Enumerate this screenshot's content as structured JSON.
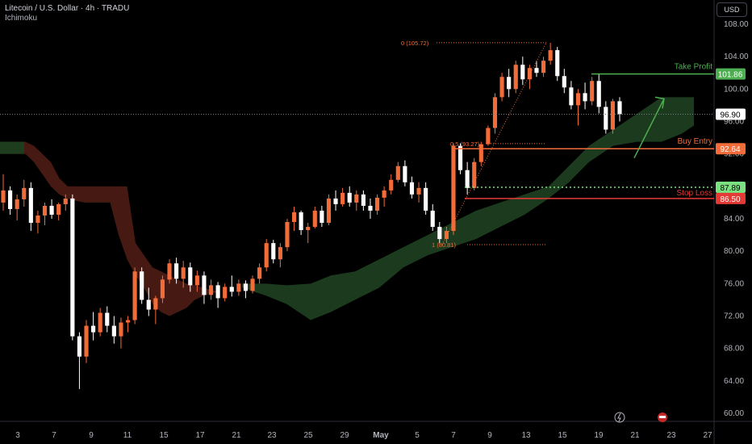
{
  "header": {
    "symbol_line": "Litecoin / U.S. Dollar · 4h · TRADU",
    "indicator": "Ichimoku"
  },
  "price_scale_label": "USD",
  "colors": {
    "background": "#000000",
    "bull": "#f26c3a",
    "bear": "#ffffff",
    "cloud_bull": "#1e3d1f",
    "cloud_bear": "#4a1a14",
    "take_profit": "#4caf50",
    "buy_entry": "#f26c3a",
    "stop_loss": "#e53935",
    "target_line": "#7be07f",
    "fib": "#f26c3a"
  },
  "chart_data": {
    "type": "candlestick",
    "title": "",
    "ylim": [
      58,
      110
    ],
    "y_ticks": [
      "108.00",
      "104.00",
      "100.00",
      "96.00",
      "92.00",
      "88.00",
      "84.00",
      "80.00",
      "76.00",
      "72.00",
      "68.00",
      "64.00",
      "60.00"
    ],
    "x_ticks": [
      "3",
      "7",
      "9",
      "11",
      "15",
      "17",
      "21",
      "23",
      "25",
      "29",
      "May",
      "5",
      "7",
      "9",
      "13",
      "15",
      "19",
      "21",
      "23",
      "27"
    ],
    "candles": [
      {
        "o": 86.0,
        "h": 89.5,
        "l": 85.0,
        "c": 87.5
      },
      {
        "o": 87.5,
        "h": 88.0,
        "l": 84.5,
        "c": 85.2
      },
      {
        "o": 85.2,
        "h": 87.0,
        "l": 83.8,
        "c": 86.4
      },
      {
        "o": 86.4,
        "h": 88.8,
        "l": 85.5,
        "c": 87.8
      },
      {
        "o": 87.8,
        "h": 88.5,
        "l": 82.5,
        "c": 83.5
      },
      {
        "o": 83.5,
        "h": 85.0,
        "l": 82.2,
        "c": 84.4
      },
      {
        "o": 84.4,
        "h": 86.0,
        "l": 83.2,
        "c": 85.6
      },
      {
        "o": 85.6,
        "h": 86.4,
        "l": 84.0,
        "c": 84.5
      },
      {
        "o": 84.5,
        "h": 86.0,
        "l": 83.8,
        "c": 85.8
      },
      {
        "o": 85.8,
        "h": 87.0,
        "l": 85.0,
        "c": 86.5
      },
      {
        "o": 86.5,
        "h": 87.0,
        "l": 69.0,
        "c": 69.5
      },
      {
        "o": 69.5,
        "h": 70.0,
        "l": 63.0,
        "c": 67.0
      },
      {
        "o": 67.0,
        "h": 71.5,
        "l": 66.2,
        "c": 70.8
      },
      {
        "o": 70.8,
        "h": 72.5,
        "l": 69.0,
        "c": 70.0
      },
      {
        "o": 70.0,
        "h": 73.0,
        "l": 69.5,
        "c": 72.4
      },
      {
        "o": 72.4,
        "h": 73.2,
        "l": 70.0,
        "c": 70.8
      },
      {
        "o": 70.8,
        "h": 72.0,
        "l": 68.6,
        "c": 69.5
      },
      {
        "o": 69.5,
        "h": 71.8,
        "l": 68.0,
        "c": 71.2
      },
      {
        "o": 71.2,
        "h": 72.0,
        "l": 70.0,
        "c": 71.5
      },
      {
        "o": 71.5,
        "h": 78.0,
        "l": 71.0,
        "c": 77.5
      },
      {
        "o": 77.5,
        "h": 78.0,
        "l": 73.5,
        "c": 74.0
      },
      {
        "o": 74.0,
        "h": 75.5,
        "l": 72.0,
        "c": 72.8
      },
      {
        "o": 72.8,
        "h": 74.5,
        "l": 71.0,
        "c": 74.2
      },
      {
        "o": 74.2,
        "h": 77.0,
        "l": 73.6,
        "c": 76.5
      },
      {
        "o": 76.5,
        "h": 79.0,
        "l": 76.0,
        "c": 78.5
      },
      {
        "o": 78.5,
        "h": 79.2,
        "l": 76.0,
        "c": 76.6
      },
      {
        "o": 76.6,
        "h": 78.8,
        "l": 75.5,
        "c": 78.0
      },
      {
        "o": 78.0,
        "h": 78.6,
        "l": 75.0,
        "c": 75.8
      },
      {
        "o": 75.8,
        "h": 77.6,
        "l": 75.0,
        "c": 77.0
      },
      {
        "o": 77.0,
        "h": 77.5,
        "l": 73.5,
        "c": 74.6
      },
      {
        "o": 74.6,
        "h": 76.5,
        "l": 74.0,
        "c": 75.8
      },
      {
        "o": 75.8,
        "h": 76.2,
        "l": 73.0,
        "c": 74.2
      },
      {
        "o": 74.2,
        "h": 76.0,
        "l": 73.8,
        "c": 75.6
      },
      {
        "o": 75.6,
        "h": 77.0,
        "l": 74.4,
        "c": 75.0
      },
      {
        "o": 75.0,
        "h": 76.5,
        "l": 74.5,
        "c": 76.0
      },
      {
        "o": 76.0,
        "h": 76.4,
        "l": 74.2,
        "c": 75.1
      },
      {
        "o": 75.1,
        "h": 77.0,
        "l": 74.8,
        "c": 76.6
      },
      {
        "o": 76.6,
        "h": 78.5,
        "l": 76.0,
        "c": 78.0
      },
      {
        "o": 78.0,
        "h": 81.5,
        "l": 77.5,
        "c": 81.0
      },
      {
        "o": 81.0,
        "h": 81.4,
        "l": 78.5,
        "c": 79.0
      },
      {
        "o": 79.0,
        "h": 81.0,
        "l": 78.0,
        "c": 80.5
      },
      {
        "o": 80.5,
        "h": 84.0,
        "l": 80.0,
        "c": 83.6
      },
      {
        "o": 83.6,
        "h": 85.5,
        "l": 82.5,
        "c": 84.8
      },
      {
        "o": 84.8,
        "h": 85.0,
        "l": 82.0,
        "c": 82.6
      },
      {
        "o": 82.6,
        "h": 83.5,
        "l": 81.0,
        "c": 83.0
      },
      {
        "o": 83.0,
        "h": 85.5,
        "l": 82.8,
        "c": 85.0
      },
      {
        "o": 85.0,
        "h": 85.6,
        "l": 83.0,
        "c": 83.5
      },
      {
        "o": 83.5,
        "h": 87.0,
        "l": 83.2,
        "c": 86.5
      },
      {
        "o": 86.5,
        "h": 87.5,
        "l": 85.0,
        "c": 85.8
      },
      {
        "o": 85.8,
        "h": 87.8,
        "l": 85.5,
        "c": 87.2
      },
      {
        "o": 87.2,
        "h": 88.0,
        "l": 85.5,
        "c": 86.0
      },
      {
        "o": 86.0,
        "h": 87.5,
        "l": 85.0,
        "c": 87.0
      },
      {
        "o": 87.0,
        "h": 87.5,
        "l": 85.0,
        "c": 85.6
      },
      {
        "o": 85.6,
        "h": 86.5,
        "l": 84.0,
        "c": 85.0
      },
      {
        "o": 85.0,
        "h": 87.0,
        "l": 84.5,
        "c": 86.6
      },
      {
        "o": 86.6,
        "h": 88.0,
        "l": 85.5,
        "c": 87.5
      },
      {
        "o": 87.5,
        "h": 89.5,
        "l": 87.0,
        "c": 88.8
      },
      {
        "o": 88.8,
        "h": 91.0,
        "l": 88.5,
        "c": 90.5
      },
      {
        "o": 90.5,
        "h": 91.2,
        "l": 88.0,
        "c": 88.5
      },
      {
        "o": 88.5,
        "h": 89.2,
        "l": 86.5,
        "c": 87.0
      },
      {
        "o": 87.0,
        "h": 88.5,
        "l": 86.0,
        "c": 87.8
      },
      {
        "o": 87.8,
        "h": 88.5,
        "l": 84.5,
        "c": 85.0
      },
      {
        "o": 85.0,
        "h": 85.8,
        "l": 82.5,
        "c": 83.0
      },
      {
        "o": 83.0,
        "h": 83.6,
        "l": 81.0,
        "c": 81.5
      },
      {
        "o": 81.5,
        "h": 83.0,
        "l": 81.0,
        "c": 82.5
      },
      {
        "o": 82.5,
        "h": 93.3,
        "l": 82.0,
        "c": 93.0
      },
      {
        "o": 93.0,
        "h": 93.3,
        "l": 89.5,
        "c": 90.0
      },
      {
        "o": 90.0,
        "h": 91.0,
        "l": 87.0,
        "c": 87.8
      },
      {
        "o": 87.8,
        "h": 91.5,
        "l": 87.5,
        "c": 91.0
      },
      {
        "o": 91.0,
        "h": 93.5,
        "l": 90.5,
        "c": 93.2
      },
      {
        "o": 93.2,
        "h": 95.5,
        "l": 93.0,
        "c": 95.2
      },
      {
        "o": 95.2,
        "h": 99.5,
        "l": 94.5,
        "c": 99.0
      },
      {
        "o": 99.0,
        "h": 102.0,
        "l": 98.5,
        "c": 101.5
      },
      {
        "o": 101.5,
        "h": 102.5,
        "l": 99.0,
        "c": 100.0
      },
      {
        "o": 100.0,
        "h": 103.5,
        "l": 99.5,
        "c": 103.0
      },
      {
        "o": 103.0,
        "h": 104.0,
        "l": 100.5,
        "c": 101.2
      },
      {
        "o": 101.2,
        "h": 103.0,
        "l": 100.0,
        "c": 102.6
      },
      {
        "o": 102.6,
        "h": 103.5,
        "l": 101.5,
        "c": 102.0
      },
      {
        "o": 102.0,
        "h": 104.0,
        "l": 101.5,
        "c": 103.5
      },
      {
        "o": 103.5,
        "h": 105.7,
        "l": 103.0,
        "c": 104.8
      },
      {
        "o": 104.8,
        "h": 105.2,
        "l": 101.0,
        "c": 101.6
      },
      {
        "o": 101.6,
        "h": 102.5,
        "l": 99.5,
        "c": 100.2
      },
      {
        "o": 100.2,
        "h": 101.0,
        "l": 97.5,
        "c": 98.0
      },
      {
        "o": 98.0,
        "h": 100.0,
        "l": 95.5,
        "c": 99.5
      },
      {
        "o": 99.5,
        "h": 100.8,
        "l": 97.5,
        "c": 98.5
      },
      {
        "o": 98.5,
        "h": 101.5,
        "l": 98.0,
        "c": 101.0
      },
      {
        "o": 101.0,
        "h": 101.9,
        "l": 97.0,
        "c": 97.8
      },
      {
        "o": 97.8,
        "h": 98.5,
        "l": 94.5,
        "c": 95.0
      },
      {
        "o": 95.0,
        "h": 98.8,
        "l": 94.5,
        "c": 98.5
      },
      {
        "o": 98.5,
        "h": 99.0,
        "l": 96.0,
        "c": 96.9
      }
    ],
    "ichimoku_cloud": {
      "series": [
        {
          "name": "",
          "values": [
            [
              93.5,
              92.0
            ],
            [
              93.5,
              92.0
            ],
            [
              93.0,
              91.0
            ],
            [
              92.5,
              89.5
            ],
            [
              92.0,
              88.0
            ],
            [
              91.0,
              87.0
            ],
            [
              90.0,
              86.5
            ],
            [
              90.0,
              86.0
            ],
            [
              89.5,
              86.0
            ],
            [
              89.0,
              86.0
            ],
            [
              88.0,
              86.5
            ],
            [
              88.0,
              86.8
            ],
            [
              88.0,
              86.0
            ],
            [
              88.0,
              82.0
            ],
            [
              88.0,
              79.0
            ],
            [
              88.0,
              77.0
            ],
            [
              78.5,
              76.0
            ],
            [
              78.0,
              75.0
            ],
            [
              78.0,
              75.0
            ],
            [
              78.0,
              75.5
            ],
            [
              78.0,
              74.5
            ],
            [
              77.5,
              72.5
            ],
            [
              77.0,
              72.0
            ],
            [
              76.5,
              72.5
            ],
            [
              76.0,
              73.0
            ],
            [
              75.5,
              74.5
            ],
            [
              75.0,
              75.0
            ]
          ]
        }
      ]
    },
    "levels": {
      "take_profit": 101.86,
      "buy_entry": 92.64,
      "target": 87.89,
      "stop_loss": 86.5,
      "current": 96.9
    },
    "fib": [
      {
        "label": "0 (105.72)",
        "value": 105.72
      },
      {
        "label": "0.5 (93.27)",
        "value": 93.27
      },
      {
        "label": "1 (80.81)",
        "value": 80.81
      }
    ]
  },
  "annotations": {
    "take_profit_label": "Take Profit",
    "buy_entry_label": "Buy Entry",
    "stop_loss_label": "Stop Loss",
    "take_profit_price": "101.86",
    "buy_entry_price": "92.64",
    "target_price": "87.89",
    "stop_loss_price": "86.50",
    "current_price": "96.90"
  }
}
